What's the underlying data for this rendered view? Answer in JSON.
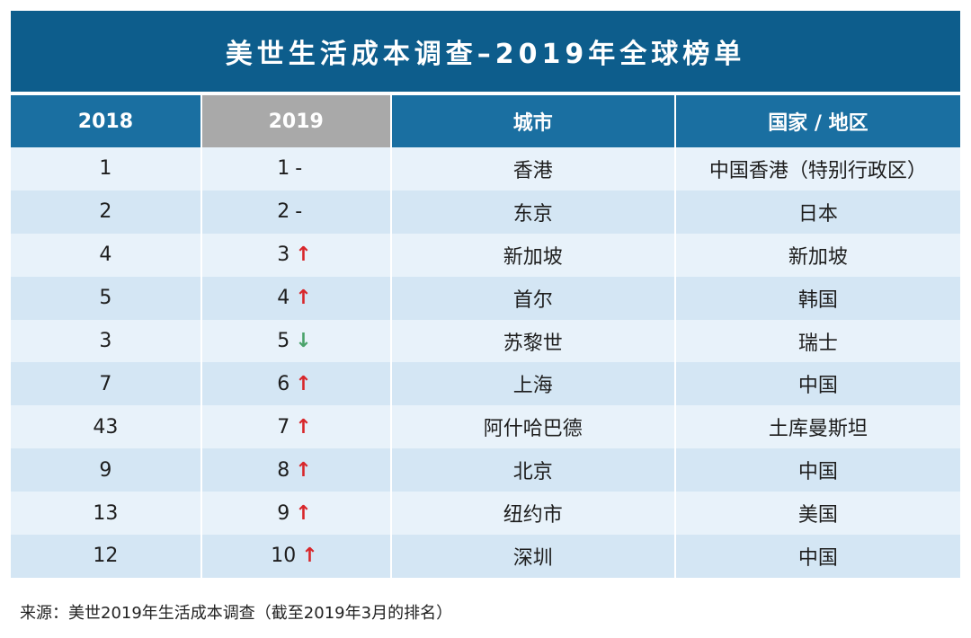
{
  "title": "美世生活成本调查–2019年全球榜单",
  "headers": [
    "2018",
    "2019",
    "城市",
    "国家 / 地区"
  ],
  "rows": [
    {
      "rank2018": "1",
      "rank2019": "1",
      "trend": "-",
      "city": "香港",
      "country": "中国香港（特别行政区）"
    },
    {
      "rank2018": "2",
      "rank2019": "2",
      "trend": "-",
      "city": "东京",
      "country": "日本"
    },
    {
      "rank2018": "4",
      "rank2019": "3",
      "trend": "↑",
      "city": "新加坡",
      "country": "新加坡"
    },
    {
      "rank2018": "5",
      "rank2019": "4",
      "trend": "↑",
      "city": "首尔",
      "country": "韩国"
    },
    {
      "rank2018": "3",
      "rank2019": "5",
      "trend": "↓",
      "city": "苏黎世",
      "country": "瑞士"
    },
    {
      "rank2018": "7",
      "rank2019": "6",
      "trend": "↑",
      "city": "上海",
      "country": "中国"
    },
    {
      "rank2018": "43",
      "rank2019": "7",
      "trend": "↑",
      "city": "阿什哈巴德",
      "country": "土库曼斯坦"
    },
    {
      "rank2018": "9",
      "rank2019": "8",
      "trend": "↑",
      "city": "北京",
      "country": "中国"
    },
    {
      "rank2018": "13",
      "rank2019": "9",
      "trend": "↑",
      "city": "纽约市",
      "country": "美国"
    },
    {
      "rank2018": "12",
      "rank2019": "10",
      "trend": "↑",
      "city": "深圳",
      "country": "中国"
    }
  ],
  "source": "来源：美世2019年生活成本调查（截至2019年3月的排名）",
  "colors": {
    "title_bg": "#0d5d8c",
    "header_bg": "#1a6fa1",
    "selected_header": "#a9a9a9",
    "up": "#d8262a",
    "down": "#4aa36b"
  }
}
